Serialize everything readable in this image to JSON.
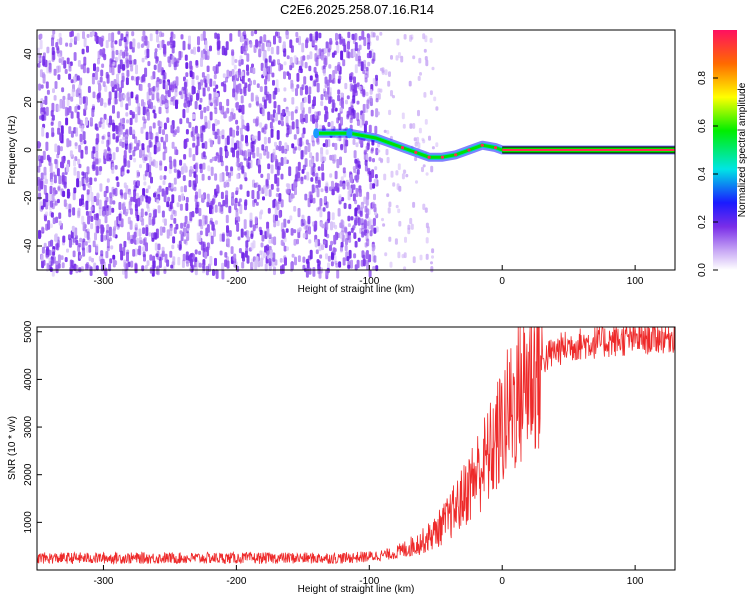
{
  "title": "C2E6.2025.258.07.16.R14",
  "chart_data": [
    {
      "type": "heatmap",
      "xlabel": "Height of straight line (km)",
      "ylabel": "Frequency (Hz)",
      "xlim": [
        -350,
        130
      ],
      "ylim": [
        -50,
        50
      ],
      "xticks": [
        -300,
        -200,
        -100,
        0,
        100
      ],
      "yticks": [
        -40,
        -20,
        0,
        20,
        40
      ],
      "colorbar": {
        "label": "Normalized spectral amplitude",
        "range": [
          0,
          1
        ],
        "ticks": [
          "0.0",
          "0.2",
          "0.4",
          "0.6",
          "0.8"
        ]
      },
      "signal_track": {
        "x": [
          -140,
          -115,
          -95,
          -85,
          -75,
          -65,
          -55,
          -45,
          -35,
          -25,
          -15,
          -5,
          0,
          50,
          100,
          130
        ],
        "freq": [
          7,
          7,
          5,
          3,
          1,
          -1,
          -3,
          -3,
          -2,
          0,
          2,
          1,
          0,
          0,
          0,
          0
        ]
      }
    },
    {
      "type": "line",
      "xlabel": "Height of straight line (km)",
      "ylabel": "SNR (10 * v/v)",
      "xlim": [
        -350,
        130
      ],
      "ylim": [
        0,
        5100
      ],
      "xticks": [
        -300,
        -200,
        -100,
        0,
        100
      ],
      "yticks": [
        1000,
        2000,
        3000,
        4000,
        5000
      ],
      "color": "#ee2a2a",
      "series": [
        {
          "name": "SNR",
          "x": [
            -350,
            -120,
            -100,
            -80,
            -60,
            -50,
            -40,
            -30,
            -20,
            -10,
            0,
            10,
            20,
            30,
            40,
            50,
            60,
            80,
            100,
            130
          ],
          "y": [
            250,
            250,
            280,
            350,
            600,
            800,
            1100,
            1500,
            2000,
            2400,
            3000,
            3600,
            4100,
            4400,
            4600,
            4700,
            4750,
            4800,
            4850,
            4900
          ]
        }
      ]
    }
  ]
}
